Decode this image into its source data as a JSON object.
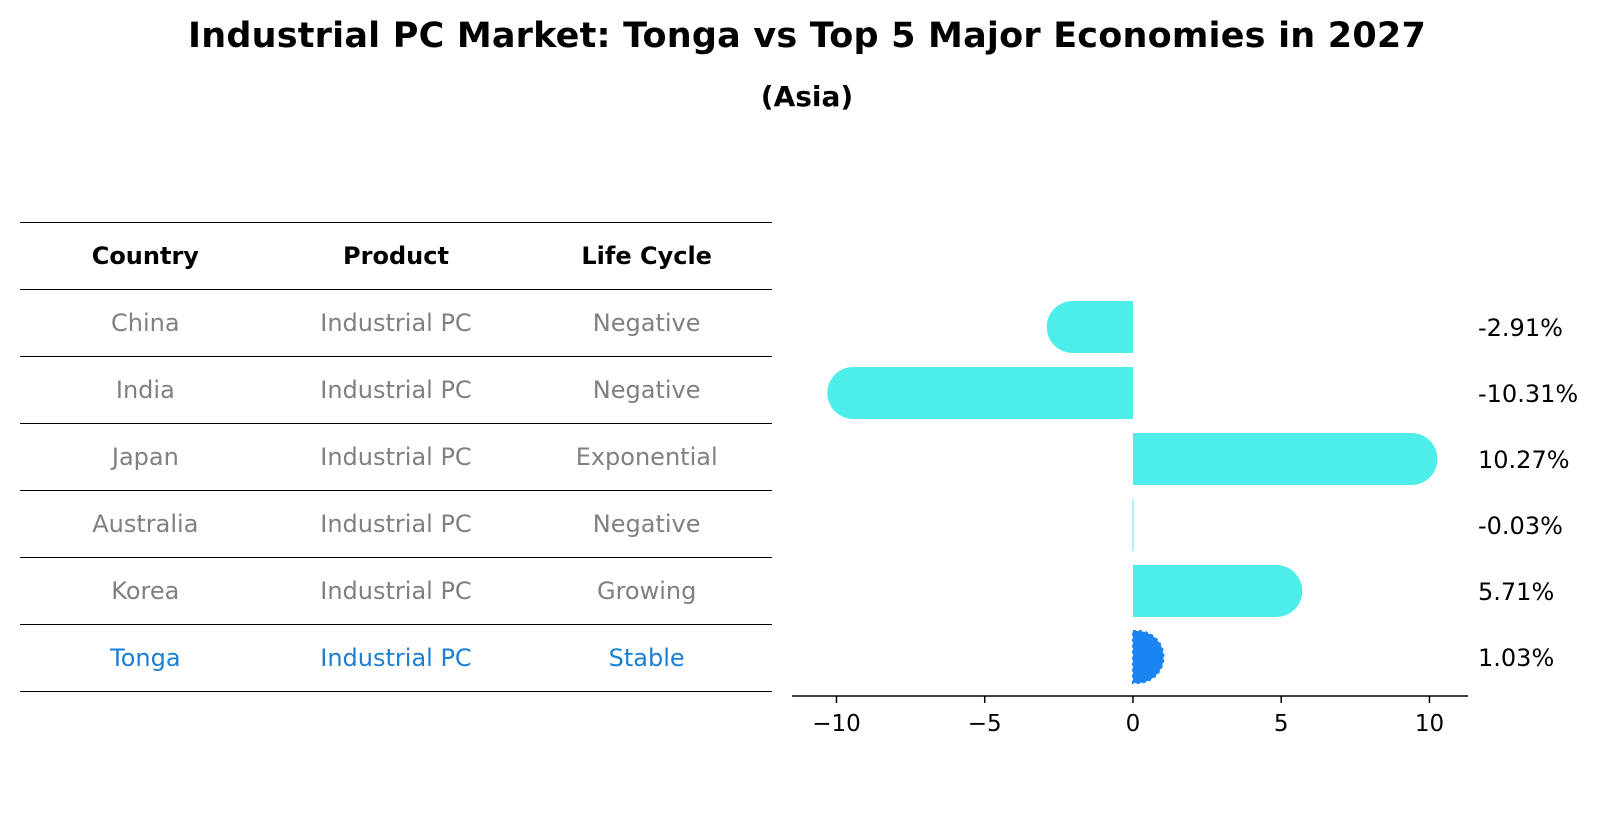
{
  "header": {
    "title": "Industrial PC Market: Tonga vs Top 5 Major Economies in 2027",
    "subtitle": "(Asia)"
  },
  "table": {
    "columns": [
      "Country",
      "Product",
      "Life Cycle"
    ],
    "rows": [
      {
        "country": "China",
        "product": "Industrial PC",
        "life_cycle": "Negative"
      },
      {
        "country": "India",
        "product": "Industrial PC",
        "life_cycle": "Negative"
      },
      {
        "country": "Japan",
        "product": "Industrial PC",
        "life_cycle": "Exponential"
      },
      {
        "country": "Australia",
        "product": "Industrial PC",
        "life_cycle": "Negative"
      },
      {
        "country": "Korea",
        "product": "Industrial PC",
        "life_cycle": "Growing"
      },
      {
        "country": "Tonga",
        "product": "Industrial PC",
        "life_cycle": "Stable"
      }
    ]
  },
  "colors": {
    "bar": "#4deee9",
    "highlight": "#1a85f0",
    "highlight_text": "#1a7fd4",
    "muted_text": "#808080"
  },
  "chart_data": {
    "type": "bar",
    "orientation": "horizontal",
    "title": "Industrial PC Market: Tonga vs Top 5 Major Economies in 2027",
    "subtitle": "(Asia)",
    "categories": [
      "China",
      "India",
      "Japan",
      "Australia",
      "Korea",
      "Tonga"
    ],
    "values": [
      -2.91,
      -10.31,
      10.27,
      -0.03,
      5.71,
      1.03
    ],
    "value_labels": [
      "-2.91%",
      "-10.31%",
      "10.27%",
      "-0.03%",
      "5.71%",
      "1.03%"
    ],
    "highlight_category": "Tonga",
    "xlim": [
      -11.5,
      11.3
    ],
    "xticks": [
      -10,
      -5,
      0,
      5,
      10
    ],
    "xtick_labels": [
      "−10",
      "−5",
      "0",
      "5",
      "10"
    ],
    "xlabel": "",
    "ylabel": "",
    "grid": false
  }
}
